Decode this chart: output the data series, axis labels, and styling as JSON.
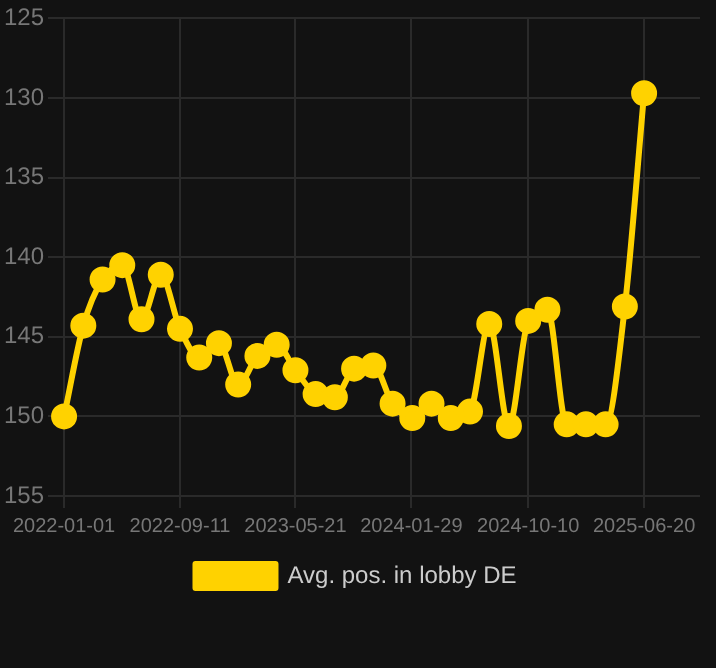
{
  "chart_data": {
    "type": "line",
    "x": [
      "2022-01-01",
      "2022-02-12",
      "2022-03-26",
      "2022-05-08",
      "2022-06-19",
      "2022-07-31",
      "2022-09-11",
      "2022-10-23",
      "2022-12-05",
      "2023-01-16",
      "2023-02-27",
      "2023-04-10",
      "2023-05-21",
      "2023-07-04",
      "2023-08-15",
      "2023-09-26",
      "2023-11-07",
      "2023-12-19",
      "2024-01-31",
      "2024-03-13",
      "2024-04-24",
      "2024-06-05",
      "2024-07-17",
      "2024-08-29",
      "2024-10-10",
      "2024-11-21",
      "2025-01-02",
      "2025-02-13",
      "2025-03-28",
      "2025-05-09",
      "2025-06-20"
    ],
    "series": [
      {
        "name": "Avg. pos. in lobby DE",
        "color": "#ffd200",
        "values": [
          150,
          144.3,
          141.4,
          140.5,
          143.9,
          141.1,
          144.5,
          146.3,
          145.4,
          148,
          146.2,
          145.5,
          147.1,
          148.6,
          148.8,
          147,
          146.8,
          149.2,
          150.1,
          149.2,
          150.1,
          149.7,
          144.2,
          150.6,
          144,
          143.3,
          150.5,
          150.5,
          150.5,
          143.1,
          129.7
        ]
      }
    ],
    "ylim": [
      155,
      125
    ],
    "yticks": [
      125,
      130,
      135,
      140,
      145,
      150,
      155
    ],
    "xlim": [
      "2021-11-27",
      "2025-10-20"
    ],
    "xticks": [
      "2022-01-01",
      "2022-09-11",
      "2023-05-21",
      "2024-01-29",
      "2024-10-10",
      "2025-06-20"
    ],
    "grid": true,
    "legend": "bottom",
    "marker": "circle",
    "line_style": "solid"
  }
}
